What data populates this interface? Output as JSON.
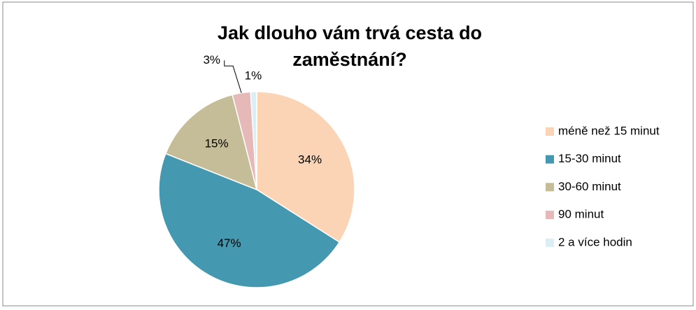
{
  "chart_data": {
    "type": "pie",
    "title": "Jak dlouho vám trvá cesta do zaměstnání?",
    "categories": [
      "méně než 15 minut",
      "15-30 minut",
      "30-60 minut",
      "90 minut",
      "2 a více hodin"
    ],
    "values": [
      34,
      47,
      15,
      3,
      1
    ],
    "value_labels": [
      "34%",
      "47%",
      "15%",
      "3%",
      "1%"
    ],
    "colors": [
      "#fad4b4",
      "#4498b0",
      "#c4bd97",
      "#e6b9b8",
      "#dbeef4"
    ],
    "legend": "right"
  }
}
